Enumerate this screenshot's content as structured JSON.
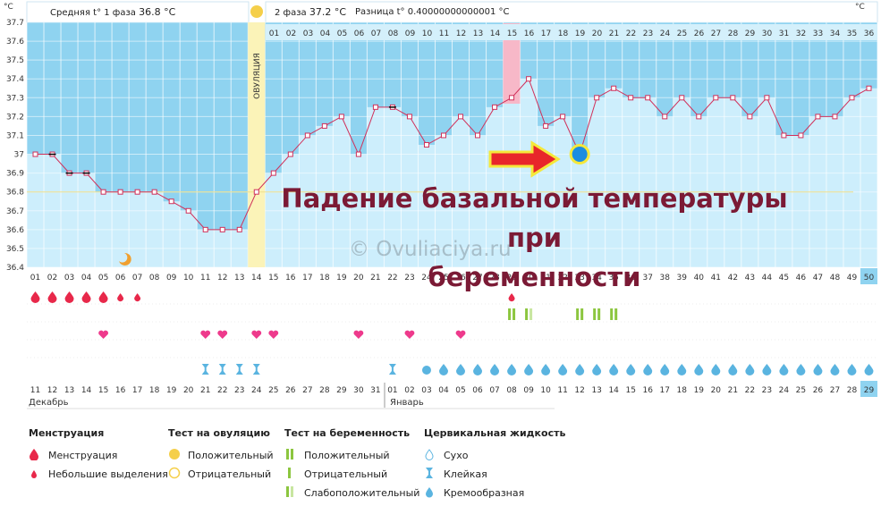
{
  "header": {
    "unit": "°C",
    "phase1_label": "Средняя t° 1 фаза",
    "phase1_value": "36.8 °C",
    "phase2_label": "2 фаза",
    "phase2_value": "37.2 °C",
    "diff_label": "Разница t°",
    "diff_value": "0.40000000000001 °C"
  },
  "ovulation_label": "ОВУЛЯЦИЯ",
  "overlay_title": [
    "Падение базальной температуры при",
    "беременности"
  ],
  "watermark": "© Ovuliaciya.ru",
  "months": [
    "Декабрь",
    "Январь"
  ],
  "colors": {
    "sky": "#8fd3f0",
    "fill": "#cdeefc",
    "line": "#d0305a",
    "ovulation": "#fbf3b8",
    "highlight": "#f7b8c8",
    "arrow": "#e8262a",
    "title": "#7b1a35"
  },
  "chart_data": {
    "type": "line",
    "ylim": [
      36.4,
      37.7
    ],
    "yticks": [
      "37.7",
      "37.6",
      "37.5",
      "37.4",
      "37.3",
      "37.2",
      "37.1",
      "37",
      "36.9",
      "36.8",
      "36.7",
      "36.6",
      "36.5",
      "36.4"
    ],
    "ovulation_day": 14,
    "highlight_day": 15,
    "coverline": 36.8,
    "top_cycle_days": [
      "01",
      "02",
      "03",
      "04",
      "05",
      "06",
      "07",
      "08",
      "09",
      "10",
      "11",
      "12",
      "13",
      "14",
      "15",
      "16",
      "17",
      "18",
      "19",
      "20",
      "21",
      "22"
    ],
    "cycle_days": [
      "01",
      "02",
      "03",
      "04",
      "05",
      "06",
      "07",
      "08",
      "09",
      "10",
      "11",
      "12",
      "13",
      "14",
      "15",
      "16",
      "17",
      "18",
      "19",
      "20",
      "21",
      "22",
      "23",
      "24",
      "25",
      "26",
      "27",
      "28",
      "29",
      "30",
      "31",
      "32",
      "33",
      "34",
      "35",
      "36",
      "37",
      "38",
      "39",
      "40",
      "41",
      "42",
      "43",
      "44",
      "45",
      "46",
      "47",
      "48",
      "49",
      "50"
    ],
    "calendar_days": [
      "11",
      "12",
      "13",
      "14",
      "15",
      "16",
      "17",
      "18",
      "19",
      "20",
      "21",
      "22",
      "23",
      "24",
      "25",
      "26",
      "27",
      "28",
      "29",
      "30",
      "31",
      "01",
      "02",
      "03",
      "04",
      "05",
      "06",
      "07",
      "08",
      "09",
      "10",
      "11",
      "12",
      "13",
      "14",
      "15",
      "16",
      "17",
      "18",
      "19",
      "20",
      "21",
      "22",
      "23",
      "24",
      "25",
      "26",
      "27",
      "28",
      "29"
    ],
    "calendar_red": [
      3,
      4,
      10,
      11,
      17,
      18,
      24,
      25,
      26,
      27,
      28,
      31,
      32,
      38,
      39,
      45,
      46
    ],
    "temps": [
      37.0,
      37.0,
      36.9,
      36.9,
      36.8,
      36.8,
      36.8,
      36.8,
      36.75,
      36.7,
      36.6,
      36.6,
      36.6,
      36.8,
      36.9,
      37.0,
      37.1,
      37.15,
      37.2,
      37.0,
      37.25,
      37.25,
      37.2,
      37.05,
      37.1,
      37.2,
      37.1,
      37.25,
      37.3,
      37.4,
      37.15,
      37.2,
      37.0,
      37.3,
      37.35,
      37.3,
      37.3,
      37.2,
      37.3,
      37.2,
      37.3,
      37.3,
      37.2,
      37.3,
      37.1,
      37.1,
      37.2,
      37.2,
      37.3,
      37.35
    ],
    "menstruation_big": [
      1,
      2,
      3,
      4,
      5
    ],
    "menstruation_small": [
      6,
      7,
      29
    ],
    "hearts": [
      5,
      11,
      12,
      14,
      15,
      20,
      23,
      26
    ],
    "pregnancy_tests": [
      29,
      30,
      33,
      34,
      35
    ],
    "pregnancy_light": [
      30
    ],
    "mucus_sticky": [
      11,
      12,
      13,
      14,
      22
    ],
    "mucus_dry": [
      24
    ],
    "marker_day": 33,
    "marker_temp": 37.0
  },
  "legend": {
    "groups": [
      {
        "title": "Менструация",
        "items": [
          "Менструация",
          "Небольшие выделения"
        ]
      },
      {
        "title": "Тест на овуляцию",
        "items": [
          "Положительный",
          "Отрицательный"
        ]
      },
      {
        "title": "Тест на беременность",
        "items": [
          "Положительный",
          "Отрицательный",
          "Слабоположительный"
        ]
      },
      {
        "title": "Цервикальная жидкость",
        "items": [
          "Сухо",
          "Клейкая",
          "Кремообразная"
        ]
      }
    ]
  }
}
